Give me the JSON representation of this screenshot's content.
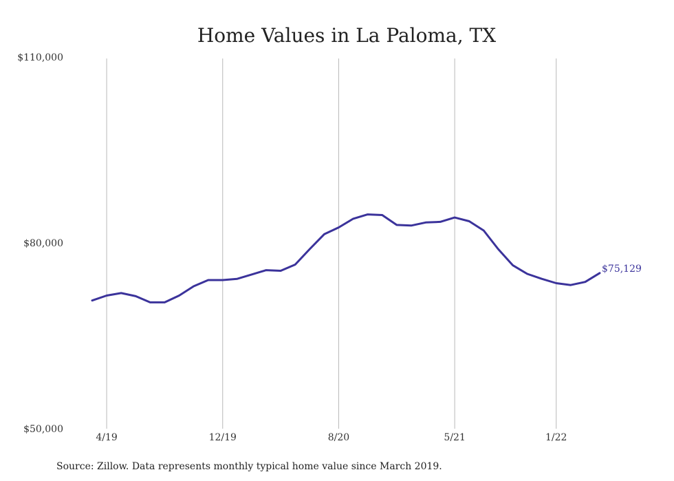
{
  "colors": {
    "line": "#3b339b",
    "grid": "#b8b8b8",
    "text": "#333333"
  },
  "chart_data": {
    "type": "line",
    "title": "Home Values in La Paloma, TX",
    "xlabel": "",
    "ylabel": "",
    "ylim": [
      50000,
      110000
    ],
    "y_ticks": [
      "$110,000",
      "$80,000",
      "$50,000"
    ],
    "y_tick_values": [
      110000,
      80000,
      50000
    ],
    "x_ticks": [
      "4/19",
      "12/19",
      "8/20",
      "5/21",
      "1/22"
    ],
    "x_tick_index": [
      1,
      9,
      17,
      25,
      32
    ],
    "grid": "vertical",
    "grid_x_index": [
      1,
      9,
      17,
      25,
      32
    ],
    "end_label": "$75,129",
    "series": [
      {
        "values": [
          70700,
          71500,
          71900,
          71400,
          70400,
          70400,
          71500,
          73000,
          74000,
          74000,
          74200,
          74900,
          75600,
          75500,
          76500,
          79000,
          81400,
          82500,
          83900,
          84600,
          84500,
          82900,
          82800,
          83300,
          83400,
          84100,
          83500,
          82000,
          79000,
          76400,
          75000,
          74200,
          73500,
          73200,
          73700,
          75129
        ]
      }
    ]
  },
  "source_note": "Source: Zillow. Data represents monthly typical home value since March 2019."
}
